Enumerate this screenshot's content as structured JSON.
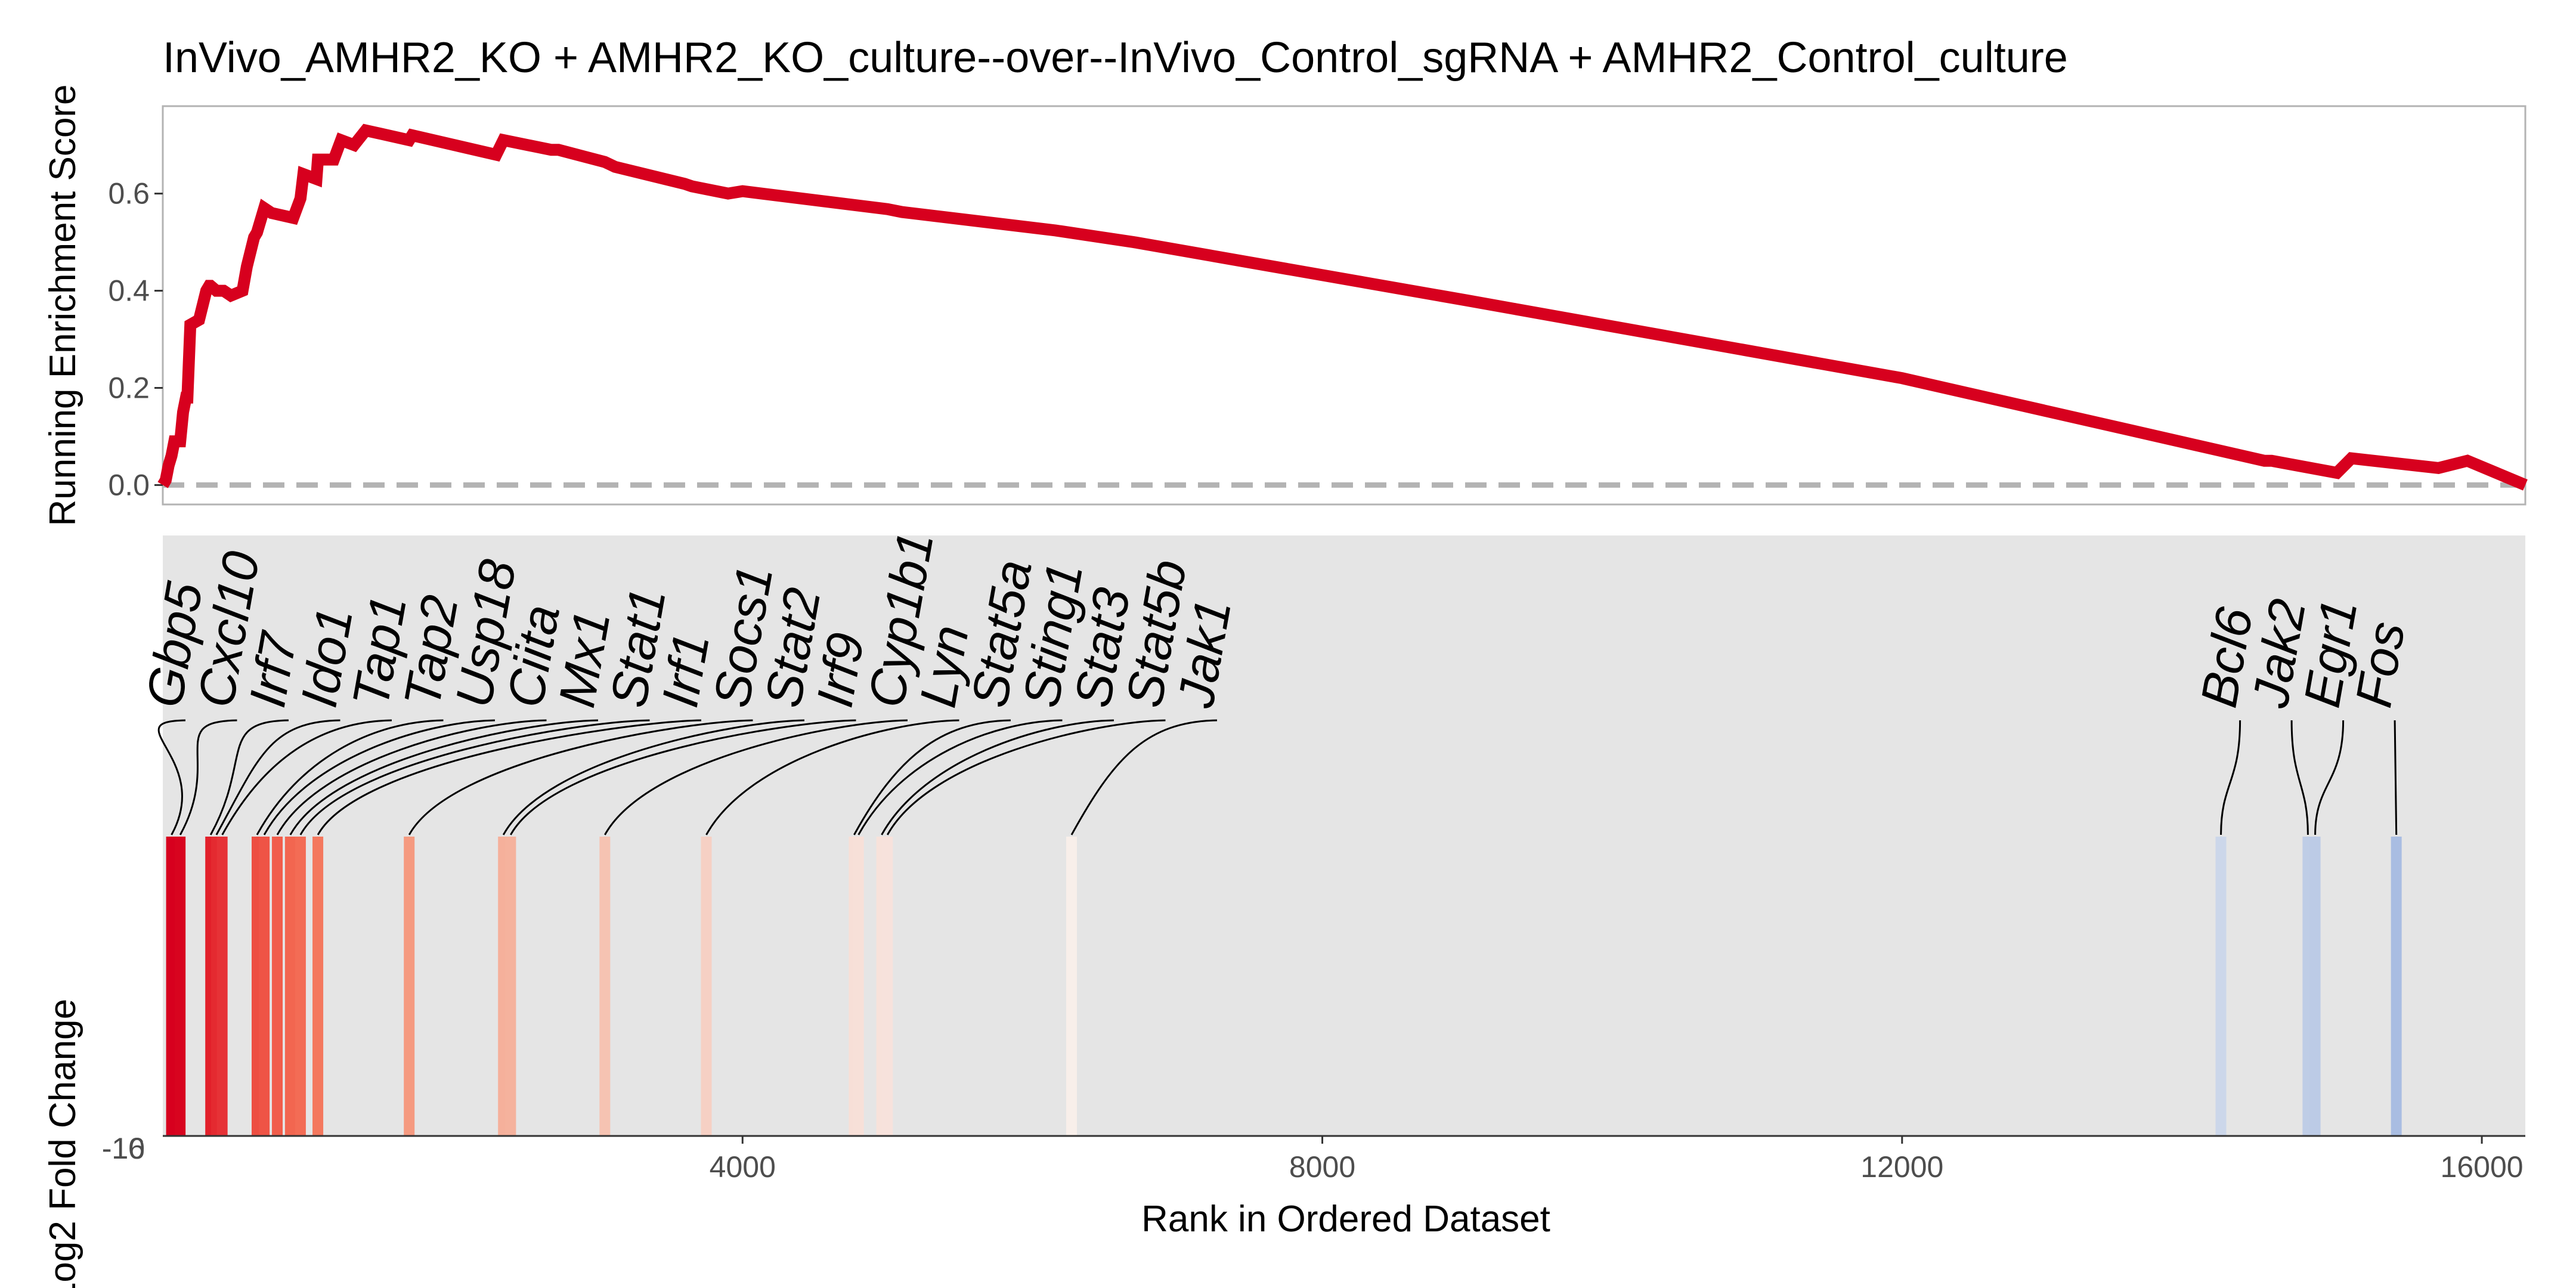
{
  "chart_data": {
    "type": "line",
    "title": "InVivo_AMHR2_KO + AMHR2_KO_culture--over--InVivo_Control_sgRNA + AMHR2_Control_culture",
    "xlabel": "Rank in Ordered Dataset",
    "ylabel_top": "Running Enrichment Score",
    "ylabel_bottom": "Log2 Fold Change",
    "xlim": [
      0,
      16300
    ],
    "ylim_top": [
      -0.04,
      0.78
    ],
    "x_ticks": [
      4000,
      8000,
      12000,
      16000
    ],
    "x_tick_labels": [
      "4000",
      "8000",
      "12000",
      "16000"
    ],
    "y_ticks_top": [
      0.0,
      0.2,
      0.4,
      0.6
    ],
    "y_tick_labels_top": [
      "0.0",
      "0.2",
      "0.4",
      "0.6"
    ],
    "y_tick_labels_bottom": [
      "-16",
      "-10"
    ],
    "baseline": 0,
    "line_color": "#d7001e",
    "baseline_color": "#b3b3b3",
    "panel_bg": "#e5e5e5",
    "enrichment_profile": {
      "x": [
        0,
        20,
        40,
        60,
        80,
        100,
        110,
        120,
        140,
        160,
        170,
        190,
        250,
        300,
        320,
        330,
        370,
        390,
        420,
        470,
        550,
        580,
        630,
        650,
        700,
        750,
        900,
        950,
        970,
        1060,
        1070,
        1180,
        1230,
        1320,
        1400,
        1700,
        1720,
        2300,
        2350,
        2680,
        2730,
        3050,
        3120,
        3600,
        3650,
        3900,
        4000,
        5000,
        5000,
        5000,
        5100,
        6160,
        6700,
        9000,
        12000,
        14500,
        14550,
        15000,
        15100,
        15700,
        15900,
        16300
      ],
      "y": [
        0.0,
        0.01,
        0.04,
        0.06,
        0.09,
        0.09,
        0.09,
        0.09,
        0.15,
        0.18,
        0.18,
        0.33,
        0.34,
        0.4,
        0.41,
        0.41,
        0.4,
        0.4,
        0.4,
        0.39,
        0.4,
        0.45,
        0.51,
        0.52,
        0.57,
        0.56,
        0.55,
        0.59,
        0.64,
        0.63,
        0.67,
        0.67,
        0.71,
        0.7,
        0.73,
        0.71,
        0.72,
        0.68,
        0.71,
        0.69,
        0.69,
        0.665,
        0.655,
        0.62,
        0.615,
        0.6,
        0.605,
        0.568,
        0.568,
        0.568,
        0.562,
        0.524,
        0.5,
        0.38,
        0.22,
        0.05,
        0.05,
        0.025,
        0.055,
        0.035,
        0.05,
        0.0
      ]
    },
    "hits": [
      {
        "gene": "Gbp5",
        "rank": 60,
        "color": "#d7001e"
      },
      {
        "gene": "Cxcl10",
        "rank": 120,
        "color": "#d8041f"
      },
      {
        "gene": "Irf7",
        "rank": 330,
        "color": "#e2202a"
      },
      {
        "gene": "Ido1",
        "rank": 370,
        "color": "#e42a30"
      },
      {
        "gene": "Tap1",
        "rank": 410,
        "color": "#e63236"
      },
      {
        "gene": "Tap2",
        "rank": 650,
        "color": "#ed4e42"
      },
      {
        "gene": "Usp18",
        "rank": 700,
        "color": "#ef5446"
      },
      {
        "gene": "Ciita",
        "rank": 790,
        "color": "#f15d4b"
      },
      {
        "gene": "Mx1",
        "rank": 880,
        "color": "#f26650"
      },
      {
        "gene": "Stat1",
        "rank": 950,
        "color": "#f36c55"
      },
      {
        "gene": "Irf1",
        "rank": 1070,
        "color": "#f4785e"
      },
      {
        "gene": "Socs1",
        "rank": 1700,
        "color": "#f59a80"
      },
      {
        "gene": "Stat2",
        "rank": 2350,
        "color": "#f5b09b"
      },
      {
        "gene": "Irf9",
        "rank": 2400,
        "color": "#f5b29d"
      },
      {
        "gene": "Cyp1b1",
        "rank": 3050,
        "color": "#f6c3b2"
      },
      {
        "gene": "Lyn",
        "rank": 3750,
        "color": "#f6d0c4"
      },
      {
        "gene": "Stat5a",
        "rank": 4770,
        "color": "#f7dfd7"
      },
      {
        "gene": "Sting1",
        "rank": 4800,
        "color": "#f7e0d8"
      },
      {
        "gene": "Stat3",
        "rank": 4960,
        "color": "#f7e2db"
      },
      {
        "gene": "Stat5b",
        "rank": 5000,
        "color": "#f7e2dc"
      },
      {
        "gene": "Jak1",
        "rank": 6270,
        "color": "#f8efea"
      },
      {
        "gene": "Bcl6",
        "rank": 14200,
        "color": "#ccd7ea"
      },
      {
        "gene": "Jak2",
        "rank": 14800,
        "color": "#bfcde6"
      },
      {
        "gene": "Egr1",
        "rank": 14850,
        "color": "#bccbe6"
      },
      {
        "gene": "Fos",
        "rank": 15410,
        "color": "#a9bde2"
      }
    ]
  }
}
